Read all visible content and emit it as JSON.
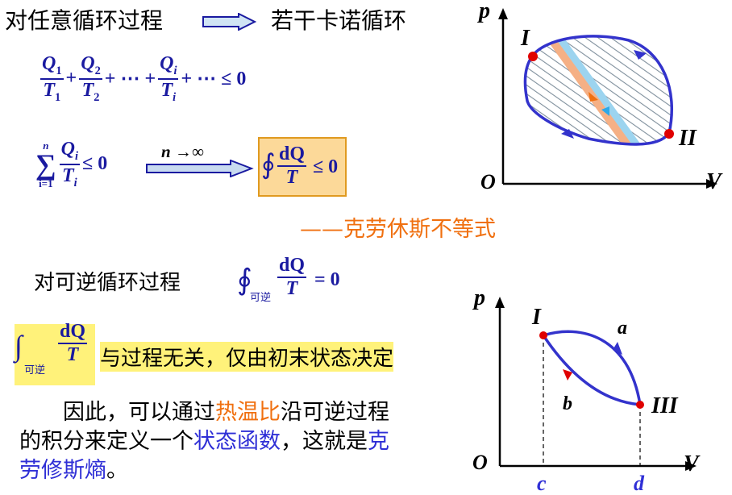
{
  "line1": {
    "left": "对任意循环过程",
    "right": "若干卡诺循环"
  },
  "sum_ineq": {
    "t1_num": "Q",
    "t1_num_sub": "1",
    "t1_den": "T",
    "t1_den_sub": "1",
    "t2_num": "Q",
    "t2_num_sub": "2",
    "t2_den": "T",
    "t2_den_sub": "2",
    "ti_num": "Q",
    "ti_num_sub": "i",
    "ti_den": "T",
    "ti_den_sub": "i",
    "plus": "+",
    "dots_plus": "+ ⋯ +",
    "tail": "+ ⋯ ≤ 0"
  },
  "sigma": {
    "top": "n",
    "symbol": "∑",
    "bottom": "i=1",
    "num": "Q",
    "num_sub": "i",
    "den": "T",
    "den_sub": "i",
    "rhs": "≤ 0"
  },
  "limit_label": "n →∞",
  "boxed": {
    "integral": "∮",
    "num": "dQ",
    "den": "T",
    "rhs": "≤ 0"
  },
  "clausius": "——克劳休斯不等式",
  "reversible": {
    "text": "对可逆循环过程",
    "integral": "∮",
    "sub": "可逆",
    "num": "dQ",
    "den": "T",
    "rhs": "= 0"
  },
  "indep": {
    "integral": "∫",
    "sub": "可逆",
    "num": "dQ",
    "den": "T",
    "text": "与过程无关，仅由初末状态决定"
  },
  "para": {
    "p1": "因此，可以通过",
    "p2": "热温比",
    "p3": "沿可逆过程",
    "p4": "的积分来定义一个",
    "p5": "状态函数",
    "p6": "，这就是",
    "p7": "克",
    "p8": "劳修斯熵",
    "p9": "。"
  },
  "diagram1": {
    "p": "p",
    "v": "V",
    "o": "O",
    "pt1": "I",
    "pt2": "II"
  },
  "diagram2": {
    "p": "p",
    "v": "V",
    "o": "O",
    "pt1": "I",
    "pt2": "III",
    "a": "a",
    "b": "b",
    "c": "c",
    "d": "d"
  },
  "colors": {
    "math_blue": "#1a1aa0",
    "text_blue": "#2f2fd6",
    "orange": "#f07010",
    "red": "#e00000",
    "highlight": "#fff27a",
    "box_fill": "#fcd999",
    "box_border": "#e09a20"
  }
}
